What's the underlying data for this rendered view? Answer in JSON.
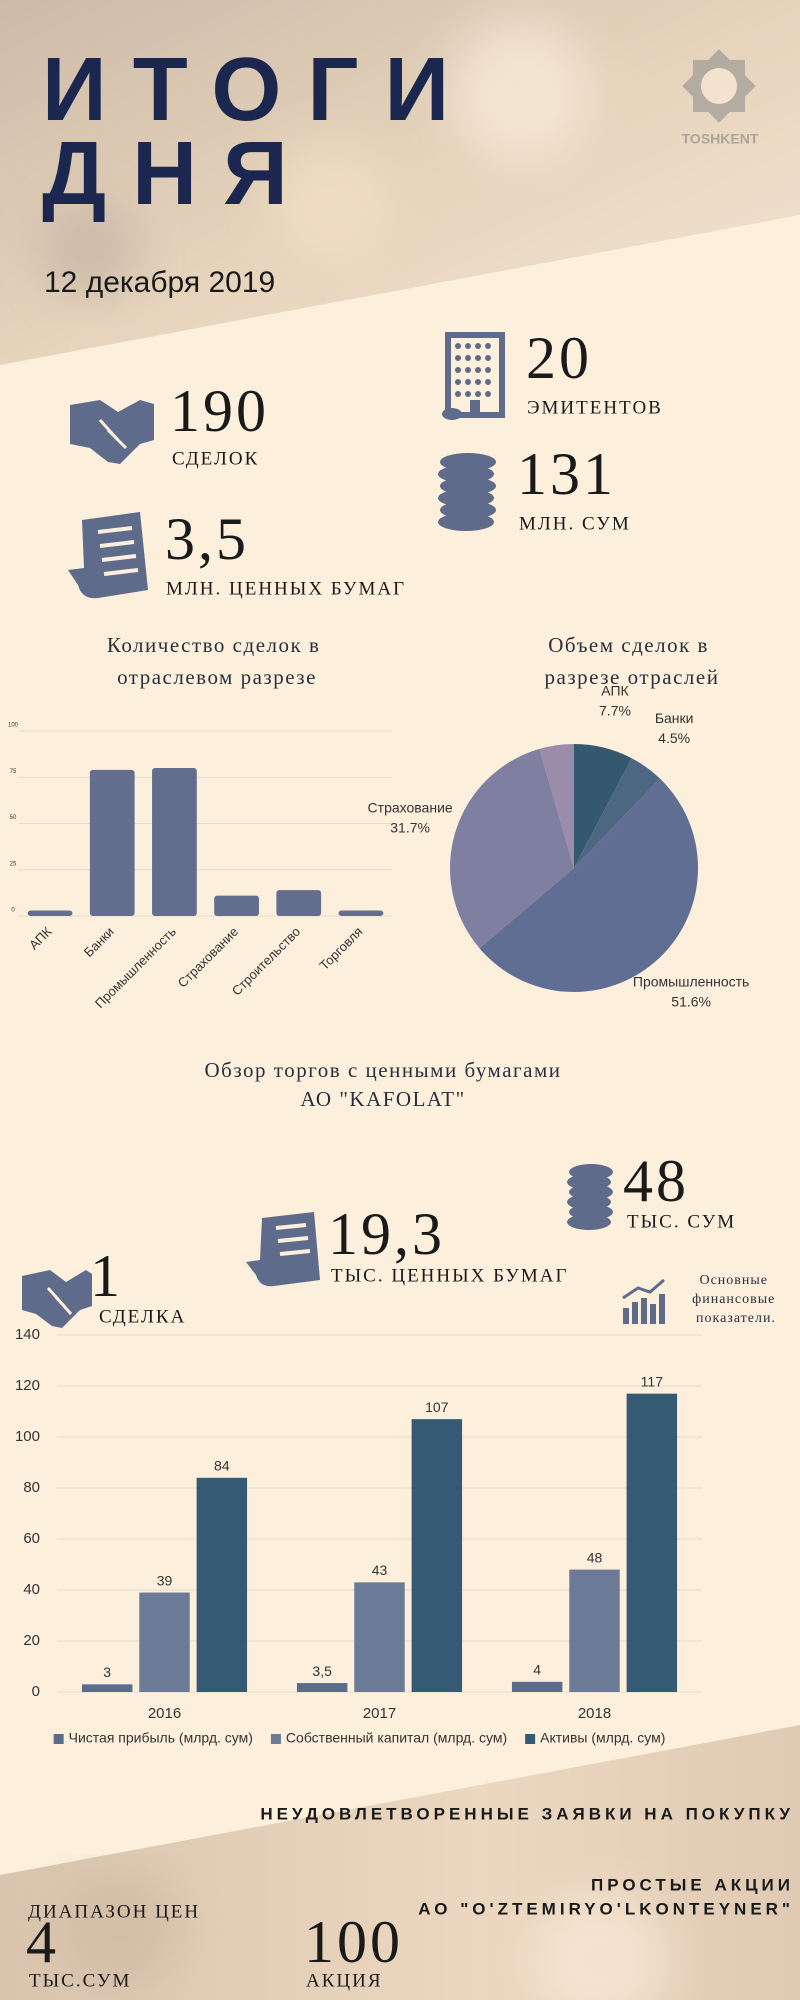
{
  "header": {
    "title_line1": "ИТОГИ",
    "title_line2": "ДНЯ",
    "date": "12 декабря 2019",
    "logo": "TOSHKENT"
  },
  "stats": [
    {
      "value": "190",
      "label": "СДЕЛОК"
    },
    {
      "value": "20",
      "label": "ЭМИТЕНТОВ"
    },
    {
      "value": "131",
      "label": "МЛН. СУМ"
    },
    {
      "value": "3,5",
      "label": "МЛН. ЦЕННЫХ БУМАГ"
    }
  ],
  "chart_data": [
    {
      "type": "bar",
      "title": "Количество сделок в отраслевом разрезе",
      "categories": [
        "АПК",
        "Банки",
        "Промышленность",
        "Страхование",
        "Строительство",
        "Торговля"
      ],
      "values": [
        3,
        79,
        80,
        11,
        14,
        3
      ],
      "color": "#636e8e",
      "ylim": [
        0,
        100
      ],
      "yticks": [
        0,
        25,
        50,
        75,
        100
      ],
      "grid": true
    },
    {
      "type": "pie",
      "title": "Объем сделок в разрезе отраслей",
      "categories": [
        "АПК",
        "Банки",
        "Промышленность",
        "Страхование",
        null
      ],
      "values": [
        7.7,
        4.5,
        51.6,
        31.7,
        4.5
      ],
      "value_labels": [
        "7.7%",
        "4.5%",
        "51.6%",
        "31.7%",
        null
      ],
      "colors": [
        "#34596f",
        "#4d6782",
        "#5f6e92",
        "#7f7fa1",
        "#9c8cab"
      ]
    },
    {
      "type": "bar",
      "categories": [
        "2016",
        "2017",
        "2018"
      ],
      "series": [
        {
          "name": "Чистая прибыль (млрд. сум)",
          "color": "#5a6b8c",
          "values": [
            3,
            3.5,
            4
          ],
          "value_labels": [
            "3",
            "3,5",
            "4"
          ]
        },
        {
          "name": "Собственный капитал (млрд. сум)",
          "color": "#6b7a96",
          "values": [
            39,
            43,
            48
          ]
        },
        {
          "name": "Активы (млрд. сум)",
          "color": "#355a73",
          "values": [
            84,
            107,
            117
          ]
        }
      ],
      "ylim": [
        0,
        140
      ],
      "yticks": [
        0,
        20,
        40,
        60,
        80,
        100,
        120,
        140
      ],
      "grid": true,
      "data_labels": true,
      "legend": "bottom"
    }
  ],
  "section2": {
    "title_line1": "Обзор торгов с ценными бумагами",
    "title_line2": "АО \"KAFOLAT\"",
    "stats": [
      {
        "value": "48",
        "label": "ТЫС. СУМ"
      },
      {
        "value": "19,3",
        "label": "ТЫС. ЦЕННЫХ БУМАГ"
      },
      {
        "value": "1",
        "label": "СДЕЛКА"
      }
    ],
    "chart_caption": "Основные финансовые показатели."
  },
  "footer": {
    "heading": "НЕУДОВЛЕТВОРЕННЫЕ ЗАЯВКИ НА ПОКУПКУ",
    "security": "ПРОСТЫЕ АКЦИИ",
    "company": "АО \"O'ZTEMIRYO'LKONTEYNER\"",
    "range_label": "ДИАПАЗОН ЦЕН",
    "price": "4",
    "price_unit": "ТЫС.СУМ",
    "quantity": "100",
    "quantity_unit": "АКЦИЯ"
  }
}
